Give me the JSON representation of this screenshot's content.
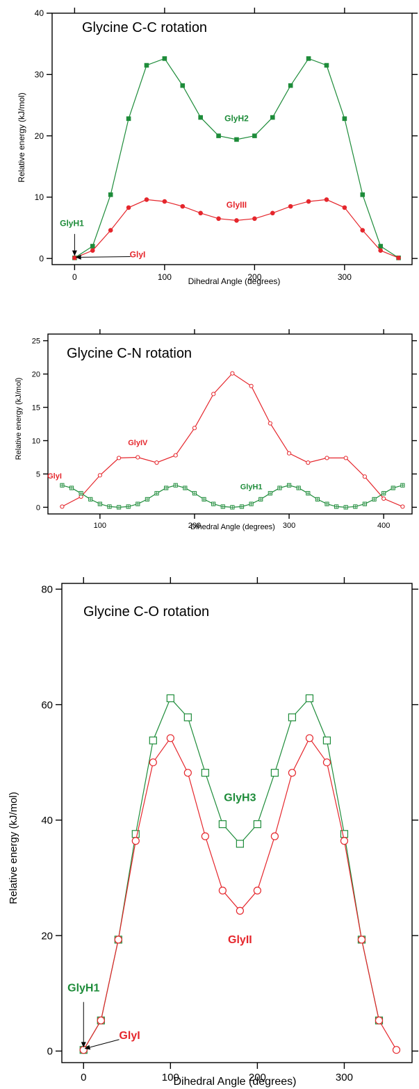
{
  "chart_data": [
    {
      "type": "line",
      "title": "Glycine C-C rotation",
      "xlabel": "Dihedral Angle (degrees)",
      "ylabel": "Relative energy (kJ/mol)",
      "xlim": [
        -25,
        375
      ],
      "ylim": [
        -1,
        40
      ],
      "xticks": [
        0,
        100,
        200,
        300
      ],
      "yticks": [
        0,
        10,
        20,
        30,
        40
      ],
      "series": [
        {
          "name": "GlyH2",
          "color": "#1e8c3a",
          "marker": "filled-square",
          "x": [
            0,
            20,
            40,
            60,
            80,
            100,
            120,
            140,
            160,
            180,
            200,
            220,
            240,
            260,
            280,
            300,
            320,
            340,
            360
          ],
          "y": [
            0.1,
            2.0,
            10.4,
            22.8,
            31.5,
            32.6,
            28.2,
            23.0,
            20.0,
            19.4,
            20.0,
            23.0,
            28.2,
            32.6,
            31.5,
            22.8,
            10.4,
            2.0,
            0.1
          ]
        },
        {
          "name": "GlyIII",
          "color": "#e5262c",
          "marker": "filled-circle",
          "x": [
            0,
            20,
            40,
            60,
            80,
            100,
            120,
            140,
            160,
            180,
            200,
            220,
            240,
            260,
            280,
            300,
            320,
            340,
            360
          ],
          "y": [
            0.1,
            1.3,
            4.6,
            8.3,
            9.6,
            9.3,
            8.5,
            7.4,
            6.5,
            6.2,
            6.5,
            7.4,
            8.5,
            9.3,
            9.6,
            8.3,
            4.6,
            1.3,
            0.1
          ]
        }
      ],
      "annotations": [
        {
          "text": "GlyH2",
          "x": 180,
          "y": 22.4,
          "color": "#1e8c3a"
        },
        {
          "text": "GlyIII",
          "x": 180,
          "y": 8.3,
          "color": "#e5262c"
        },
        {
          "text": "GlyH1",
          "x": -3,
          "y": 5.3,
          "color": "#1e8c3a"
        },
        {
          "text": "GlyI",
          "x": 70,
          "y": 0.2,
          "color": "#e5262c"
        }
      ]
    },
    {
      "type": "line",
      "title": "Glycine C-N rotation",
      "xlabel": "Dihedral Angle (degrees)",
      "ylabel": "Relative energy (kJ/mol)",
      "xlim": [
        45,
        430
      ],
      "ylim": [
        -1,
        26
      ],
      "xticks": [
        100,
        200,
        300,
        400
      ],
      "yticks": [
        0,
        5,
        10,
        15,
        20,
        25
      ],
      "series": [
        {
          "name": "GlyIV",
          "color": "#e5262c",
          "marker": "open-circle",
          "x": [
            60,
            80,
            100,
            120,
            140,
            160,
            180,
            200,
            220,
            240,
            260,
            280,
            300,
            320,
            340,
            360,
            380,
            400,
            420
          ],
          "y": [
            0.1,
            1.6,
            4.8,
            7.4,
            7.5,
            6.7,
            7.8,
            11.9,
            17.0,
            20.1,
            18.2,
            12.6,
            8.1,
            6.7,
            7.4,
            7.4,
            4.6,
            1.3,
            0.1
          ]
        },
        {
          "name": "GlyH1",
          "color": "#1e8c3a",
          "marker": "open-square-cross",
          "x": [
            60,
            70,
            80,
            90,
            100,
            110,
            120,
            130,
            140,
            150,
            160,
            170,
            180,
            190,
            200,
            210,
            220,
            230,
            240,
            250,
            260,
            270,
            280,
            290,
            300,
            310,
            320,
            330,
            340,
            350,
            360,
            370,
            380,
            390,
            400,
            410,
            420
          ],
          "y": [
            3.3,
            2.9,
            2.1,
            1.2,
            0.5,
            0.1,
            0.0,
            0.1,
            0.5,
            1.2,
            2.1,
            2.9,
            3.3,
            2.9,
            2.1,
            1.2,
            0.5,
            0.1,
            0.0,
            0.1,
            0.5,
            1.2,
            2.1,
            2.9,
            3.3,
            2.9,
            2.1,
            1.2,
            0.5,
            0.1,
            0.0,
            0.1,
            0.5,
            1.2,
            2.1,
            2.9,
            3.3
          ]
        }
      ],
      "annotations": [
        {
          "text": "GlyIV",
          "x": 140,
          "y": 9.3,
          "color": "#e5262c"
        },
        {
          "text": "GlyH1",
          "x": 260,
          "y": 2.7,
          "color": "#1e8c3a"
        },
        {
          "text": "GlyI",
          "x": 52,
          "y": 4.3,
          "color": "#e5262c"
        }
      ]
    },
    {
      "type": "line",
      "title": "Glycine C-O rotation",
      "xlabel": "Dihedral Angle (degrees)",
      "ylabel": "Relative energy (kJ/mol)",
      "xlim": [
        -25,
        378
      ],
      "ylim": [
        -2,
        81
      ],
      "xticks": [
        0,
        100,
        200,
        300
      ],
      "yticks": [
        0,
        20,
        40,
        60,
        80
      ],
      "series": [
        {
          "name": "GlyH3",
          "color": "#1e8c3a",
          "marker": "open-square",
          "x": [
            0,
            20,
            40,
            60,
            80,
            100,
            120,
            140,
            160,
            180,
            200,
            220,
            240,
            260,
            280,
            300,
            320,
            340
          ],
          "y": [
            0.2,
            5.3,
            19.3,
            37.6,
            53.8,
            61.1,
            57.8,
            48.2,
            39.3,
            35.9,
            39.3,
            48.2,
            57.8,
            61.1,
            53.8,
            37.6,
            19.3,
            5.3
          ]
        },
        {
          "name": "GlyII",
          "color": "#e5262c",
          "marker": "open-circle",
          "x": [
            0,
            20,
            40,
            60,
            80,
            100,
            120,
            140,
            160,
            180,
            200,
            220,
            240,
            260,
            280,
            300,
            320,
            340,
            360
          ],
          "y": [
            0.2,
            5.3,
            19.3,
            36.4,
            50.0,
            54.2,
            48.2,
            37.2,
            27.8,
            24.3,
            27.8,
            37.2,
            48.2,
            54.2,
            50.0,
            36.4,
            19.3,
            5.3,
            0.2
          ]
        }
      ],
      "annotations": [
        {
          "text": "GlyH3",
          "x": 180,
          "y": 43.3,
          "color": "#1e8c3a"
        },
        {
          "text": "GlyII",
          "x": 180,
          "y": 18.7,
          "color": "#e5262c"
        },
        {
          "text": "GlyH1",
          "x": 0,
          "y": 10.3,
          "color": "#1e8c3a"
        },
        {
          "text": "GlyI",
          "x": 53,
          "y": 2.1,
          "color": "#e5262c"
        }
      ]
    }
  ]
}
